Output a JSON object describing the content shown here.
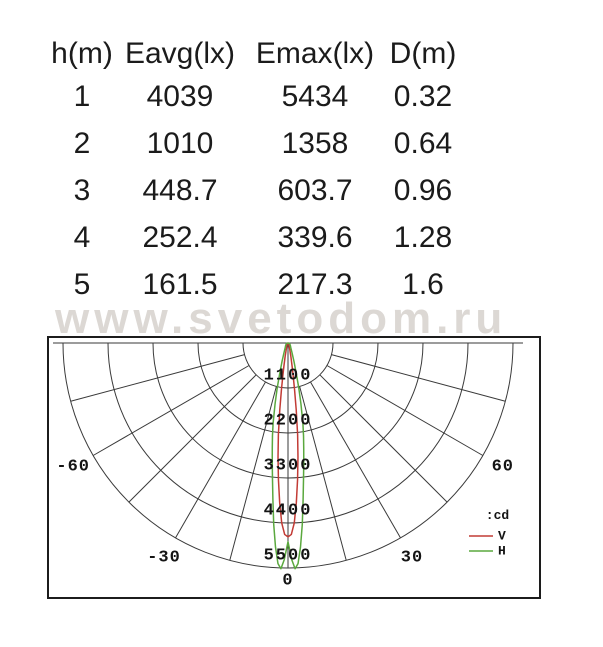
{
  "watermark": {
    "text": "www.svetodom.ru",
    "color": "#dcd8d4"
  },
  "table": {
    "headers": [
      "h(m)",
      "Eavg(lx)",
      "Emax(lx)",
      "D(m)"
    ],
    "rows": [
      [
        "1",
        "4039",
        "5434",
        "0.32"
      ],
      [
        "2",
        "1010",
        "1358",
        "0.64"
      ],
      [
        "3",
        "448.7",
        "603.7",
        "0.96"
      ],
      [
        "4",
        "252.4",
        "339.6",
        "1.28"
      ],
      [
        "5",
        "161.5",
        "217.3",
        "1.6"
      ]
    ]
  },
  "chart_data": {
    "type": "polar-intensity",
    "units": "cd",
    "title": "",
    "ring_values": [
      1100,
      2200,
      3300,
      4400,
      5500
    ],
    "ring_step_cd": 1100,
    "angle_range_deg": [
      -90,
      90
    ],
    "radial_grid_step_deg": 15,
    "angle_labels": [
      {
        "deg": -60,
        "label": "-60"
      },
      {
        "deg": -30,
        "label": "-30"
      },
      {
        "deg": 0,
        "label": "0"
      },
      {
        "deg": 30,
        "label": "30"
      },
      {
        "deg": 60,
        "label": "60"
      }
    ],
    "legend": {
      "title": ":cd",
      "entries": [
        {
          "label": "V",
          "color": "#c23b35"
        },
        {
          "label": "H",
          "color": "#5aa83e"
        }
      ]
    },
    "series": [
      {
        "name": "V",
        "color": "#c23b35",
        "symmetric": true,
        "points_deg_cd": [
          [
            0,
            4740
          ],
          [
            1,
            4680
          ],
          [
            2,
            4400
          ],
          [
            3,
            3900
          ],
          [
            4,
            3350
          ],
          [
            5,
            2800
          ],
          [
            6,
            2250
          ],
          [
            7,
            1650
          ],
          [
            8,
            1150
          ],
          [
            9,
            800
          ],
          [
            10,
            580
          ],
          [
            12,
            340
          ],
          [
            15,
            175
          ],
          [
            20,
            85
          ],
          [
            30,
            40
          ],
          [
            45,
            18
          ],
          [
            60,
            9
          ],
          [
            75,
            4
          ],
          [
            90,
            0
          ]
        ]
      },
      {
        "name": "H",
        "color": "#5aa83e",
        "symmetric": true,
        "points_deg_cd": [
          [
            0,
            4860
          ],
          [
            1,
            5300
          ],
          [
            1.8,
            5520
          ],
          [
            2.6,
            5400
          ],
          [
            3.5,
            5000
          ],
          [
            4.5,
            4450
          ],
          [
            5.5,
            3850
          ],
          [
            6.5,
            3350
          ],
          [
            7.5,
            2950
          ],
          [
            8.5,
            2600
          ],
          [
            9.5,
            2300
          ],
          [
            10.5,
            2000
          ],
          [
            12,
            1520
          ],
          [
            13.5,
            1130
          ],
          [
            15,
            800
          ],
          [
            18,
            470
          ],
          [
            22,
            270
          ],
          [
            30,
            140
          ],
          [
            45,
            80
          ],
          [
            60,
            50
          ],
          [
            75,
            25
          ],
          [
            90,
            0
          ]
        ]
      }
    ]
  }
}
